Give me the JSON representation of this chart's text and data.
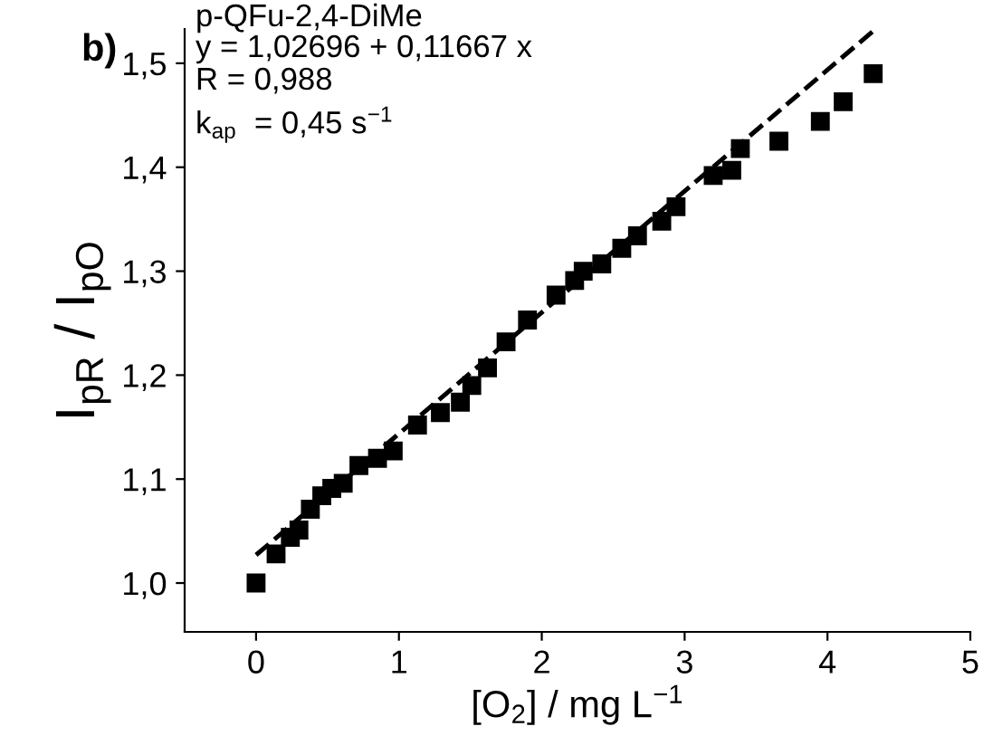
{
  "chart_data": {
    "type": "scatter",
    "xlabel": "[O$_{2}$] / mg L$^{−1}$",
    "ylabel": "I$_{pR}$ / I$_{pO}$",
    "annotations": [
      "b)",
      "p-QFu-2,4-DiMe",
      "y = 1,02696 + 0,11667 x",
      "R = 0,988",
      "k$_{ap}$  = 0,45 s$^{−1}$"
    ],
    "series": [
      {
        "color": "#000000",
        "marker": "square",
        "x": [
          0,
          0.14,
          0.24,
          0.3,
          0.38,
          0.46,
          0.53,
          0.61,
          0.72,
          0.85,
          0.96,
          1.13,
          1.29,
          1.43,
          1.51,
          1.62,
          1.75,
          1.9,
          2.1,
          2.23,
          2.29,
          2.42,
          2.56,
          2.67,
          2.84,
          2.94,
          3.2,
          3.33,
          3.39,
          3.66,
          3.95,
          4.11,
          4.32
        ],
        "values": [
          1.0,
          1.028,
          1.044,
          1.051,
          1.071,
          1.084,
          1.091,
          1.096,
          1.113,
          1.12,
          1.127,
          1.152,
          1.164,
          1.174,
          1.19,
          1.207,
          1.232,
          1.253,
          1.277,
          1.291,
          1.3,
          1.307,
          1.322,
          1.334,
          1.348,
          1.362,
          1.392,
          1.397,
          1.418,
          1.425,
          1.444,
          1.463,
          1.49
        ]
      },
      {
        "type": "line",
        "color": "#000000",
        "line_style": "dashed",
        "marker": "none",
        "x": [
          0,
          4.32
        ],
        "values": [
          1.027,
          1.531
        ]
      }
    ],
    "xlim": [
      -0.5,
      5
    ],
    "xticks": [
      0,
      1,
      2,
      3,
      4,
      5
    ],
    "ylim": [
      0.953,
      1.533
    ],
    "yticks": [
      {
        "value": 1.0,
        "label": "1,0"
      },
      {
        "value": 1.1,
        "label": "1,1"
      },
      {
        "value": 1.2,
        "label": "1,2"
      },
      {
        "value": 1.3,
        "label": "1,3"
      },
      {
        "value": 1.4,
        "label": "1,4"
      },
      {
        "value": 1.5,
        "label": "1,5"
      }
    ],
    "grid": false,
    "legend": false
  }
}
